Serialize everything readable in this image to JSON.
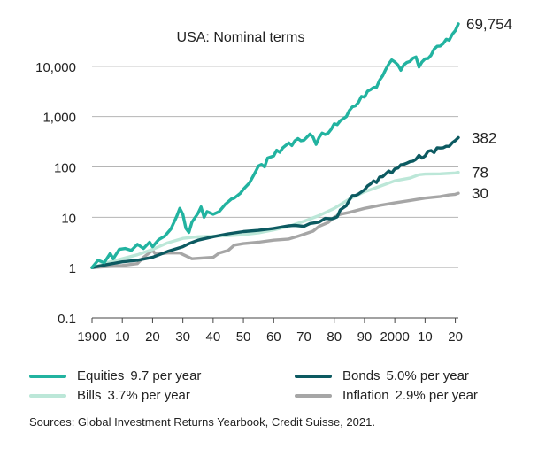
{
  "chart_data": {
    "type": "line",
    "title": "USA: Nominal terms",
    "y_scale": "log",
    "ylim": [
      0.1,
      100000
    ],
    "xlim": [
      1900,
      2021
    ],
    "y_ticks": [
      {
        "value": 0.1,
        "label": "0.1"
      },
      {
        "value": 1,
        "label": "1"
      },
      {
        "value": 10,
        "label": "10"
      },
      {
        "value": 100,
        "label": "100"
      },
      {
        "value": 1000,
        "label": "1,000"
      },
      {
        "value": 10000,
        "label": "10,000"
      }
    ],
    "x_ticks": [
      {
        "value": 1900,
        "label": "1900"
      },
      {
        "value": 1910,
        "label": "10"
      },
      {
        "value": 1920,
        "label": "20"
      },
      {
        "value": 1930,
        "label": "30"
      },
      {
        "value": 1940,
        "label": "40"
      },
      {
        "value": 1950,
        "label": "50"
      },
      {
        "value": 1960,
        "label": "60"
      },
      {
        "value": 1970,
        "label": "70"
      },
      {
        "value": 1980,
        "label": "80"
      },
      {
        "value": 1990,
        "label": "90"
      },
      {
        "value": 2000,
        "label": "2000"
      },
      {
        "value": 2010,
        "label": "10"
      },
      {
        "value": 2020,
        "label": "20"
      }
    ],
    "grid": "horizontal",
    "series": [
      {
        "name": "Equities",
        "rate": "9.7 per year",
        "color": "#22b3a0",
        "end_label": "69,754",
        "points": [
          [
            1900,
            1
          ],
          [
            1902,
            1.4
          ],
          [
            1904,
            1.25
          ],
          [
            1906,
            1.9
          ],
          [
            1907,
            1.5
          ],
          [
            1909,
            2.3
          ],
          [
            1911,
            2.4
          ],
          [
            1913,
            2.2
          ],
          [
            1915,
            2.9
          ],
          [
            1917,
            2.4
          ],
          [
            1919,
            3.2
          ],
          [
            1920,
            2.6
          ],
          [
            1922,
            3.6
          ],
          [
            1924,
            4.2
          ],
          [
            1926,
            5.8
          ],
          [
            1928,
            10.5
          ],
          [
            1929,
            15
          ],
          [
            1930,
            11.5
          ],
          [
            1931,
            6
          ],
          [
            1932,
            5
          ],
          [
            1933,
            8
          ],
          [
            1935,
            12
          ],
          [
            1936,
            16
          ],
          [
            1937,
            10
          ],
          [
            1938,
            13
          ],
          [
            1940,
            11.5
          ],
          [
            1942,
            13
          ],
          [
            1944,
            18
          ],
          [
            1946,
            23
          ],
          [
            1947,
            24
          ],
          [
            1949,
            30
          ],
          [
            1950,
            36
          ],
          [
            1952,
            48
          ],
          [
            1954,
            80
          ],
          [
            1955,
            105
          ],
          [
            1956,
            112
          ],
          [
            1957,
            100
          ],
          [
            1958,
            150
          ],
          [
            1960,
            165
          ],
          [
            1961,
            215
          ],
          [
            1962,
            195
          ],
          [
            1963,
            240
          ],
          [
            1965,
            300
          ],
          [
            1966,
            265
          ],
          [
            1967,
            330
          ],
          [
            1968,
            365
          ],
          [
            1969,
            330
          ],
          [
            1970,
            340
          ],
          [
            1972,
            450
          ],
          [
            1973,
            390
          ],
          [
            1974,
            280
          ],
          [
            1975,
            385
          ],
          [
            1976,
            470
          ],
          [
            1977,
            440
          ],
          [
            1978,
            470
          ],
          [
            1979,
            560
          ],
          [
            1980,
            720
          ],
          [
            1981,
            690
          ],
          [
            1982,
            830
          ],
          [
            1984,
            1000
          ],
          [
            1985,
            1320
          ],
          [
            1986,
            1560
          ],
          [
            1987,
            1640
          ],
          [
            1988,
            1920
          ],
          [
            1989,
            2520
          ],
          [
            1990,
            2440
          ],
          [
            1991,
            3190
          ],
          [
            1992,
            3430
          ],
          [
            1993,
            3780
          ],
          [
            1994,
            3830
          ],
          [
            1995,
            5270
          ],
          [
            1996,
            6480
          ],
          [
            1997,
            8640
          ],
          [
            1998,
            11100
          ],
          [
            1999,
            13400
          ],
          [
            2000,
            12200
          ],
          [
            2001,
            10700
          ],
          [
            2002,
            8340
          ],
          [
            2003,
            10700
          ],
          [
            2004,
            11900
          ],
          [
            2005,
            12500
          ],
          [
            2006,
            14500
          ],
          [
            2007,
            15300
          ],
          [
            2008,
            9650
          ],
          [
            2009,
            12200
          ],
          [
            2010,
            14100
          ],
          [
            2011,
            14300
          ],
          [
            2012,
            16600
          ],
          [
            2013,
            22000
          ],
          [
            2014,
            25000
          ],
          [
            2015,
            25300
          ],
          [
            2016,
            28300
          ],
          [
            2017,
            34500
          ],
          [
            2018,
            33000
          ],
          [
            2019,
            43400
          ],
          [
            2020,
            51300
          ],
          [
            2021,
            69754
          ]
        ]
      },
      {
        "name": "Bonds",
        "rate": "5.0% per year",
        "color": "#0c5a61",
        "end_label": "382",
        "points": [
          [
            1900,
            1
          ],
          [
            1905,
            1.15
          ],
          [
            1910,
            1.3
          ],
          [
            1915,
            1.4
          ],
          [
            1920,
            1.6
          ],
          [
            1925,
            2.1
          ],
          [
            1930,
            2.6
          ],
          [
            1932,
            3
          ],
          [
            1935,
            3.5
          ],
          [
            1940,
            4.1
          ],
          [
            1945,
            4.7
          ],
          [
            1950,
            5.2
          ],
          [
            1955,
            5.5
          ],
          [
            1960,
            6
          ],
          [
            1965,
            6.8
          ],
          [
            1967,
            6.9
          ],
          [
            1970,
            6.6
          ],
          [
            1972,
            7.5
          ],
          [
            1975,
            8
          ],
          [
            1977,
            9.5
          ],
          [
            1979,
            9.3
          ],
          [
            1980,
            9.6
          ],
          [
            1981,
            10.2
          ],
          [
            1982,
            14
          ],
          [
            1984,
            17
          ],
          [
            1985,
            22
          ],
          [
            1986,
            27
          ],
          [
            1987,
            27
          ],
          [
            1988,
            29
          ],
          [
            1990,
            35
          ],
          [
            1991,
            42
          ],
          [
            1992,
            46
          ],
          [
            1993,
            53
          ],
          [
            1994,
            49
          ],
          [
            1995,
            63
          ],
          [
            1996,
            64
          ],
          [
            1997,
            73
          ],
          [
            1998,
            83
          ],
          [
            1999,
            76
          ],
          [
            2000,
            91
          ],
          [
            2001,
            95
          ],
          [
            2002,
            110
          ],
          [
            2003,
            113
          ],
          [
            2004,
            119
          ],
          [
            2005,
            127
          ],
          [
            2006,
            130
          ],
          [
            2007,
            142
          ],
          [
            2008,
            170
          ],
          [
            2009,
            150
          ],
          [
            2010,
            165
          ],
          [
            2011,
            205
          ],
          [
            2012,
            212
          ],
          [
            2013,
            193
          ],
          [
            2014,
            240
          ],
          [
            2015,
            237
          ],
          [
            2016,
            240
          ],
          [
            2017,
            257
          ],
          [
            2018,
            257
          ],
          [
            2019,
            303
          ],
          [
            2020,
            334
          ],
          [
            2021,
            382
          ]
        ]
      },
      {
        "name": "Bills",
        "rate": "3.7% per year",
        "color": "#bce7d8",
        "end_label": "78",
        "points": [
          [
            1900,
            1
          ],
          [
            1905,
            1.25
          ],
          [
            1910,
            1.5
          ],
          [
            1915,
            1.8
          ],
          [
            1920,
            2.3
          ],
          [
            1925,
            3.1
          ],
          [
            1930,
            3.8
          ],
          [
            1935,
            4.1
          ],
          [
            1940,
            4.2
          ],
          [
            1945,
            4.3
          ],
          [
            1950,
            4.5
          ],
          [
            1955,
            4.9
          ],
          [
            1960,
            5.6
          ],
          [
            1965,
            6.6
          ],
          [
            1970,
            8.3
          ],
          [
            1975,
            10.8
          ],
          [
            1980,
            15
          ],
          [
            1985,
            23
          ],
          [
            1990,
            32
          ],
          [
            1995,
            41
          ],
          [
            2000,
            53
          ],
          [
            2005,
            60
          ],
          [
            2008,
            70
          ],
          [
            2010,
            72
          ],
          [
            2015,
            73
          ],
          [
            2020,
            76
          ],
          [
            2021,
            78
          ]
        ]
      },
      {
        "name": "Inflation",
        "rate": "2.9% per year",
        "color": "#a6a6a6",
        "end_label": "30",
        "points": [
          [
            1900,
            1
          ],
          [
            1905,
            1.05
          ],
          [
            1910,
            1.1
          ],
          [
            1915,
            1.2
          ],
          [
            1917,
            1.6
          ],
          [
            1920,
            2.2
          ],
          [
            1921,
            1.85
          ],
          [
            1925,
            1.95
          ],
          [
            1929,
            1.95
          ],
          [
            1933,
            1.5
          ],
          [
            1940,
            1.6
          ],
          [
            1942,
            1.95
          ],
          [
            1945,
            2.2
          ],
          [
            1947,
            2.8
          ],
          [
            1950,
            3
          ],
          [
            1955,
            3.2
          ],
          [
            1960,
            3.5
          ],
          [
            1965,
            3.7
          ],
          [
            1968,
            4.2
          ],
          [
            1970,
            4.6
          ],
          [
            1973,
            5.3
          ],
          [
            1975,
            6.6
          ],
          [
            1978,
            7.9
          ],
          [
            1980,
            10
          ],
          [
            1982,
            11.5
          ],
          [
            1985,
            12.5
          ],
          [
            1990,
            15
          ],
          [
            1995,
            17.2
          ],
          [
            2000,
            19.3
          ],
          [
            2005,
            21.5
          ],
          [
            2010,
            24
          ],
          [
            2015,
            25.8
          ],
          [
            2018,
            27.8
          ],
          [
            2020,
            28.6
          ],
          [
            2021,
            30
          ]
        ]
      }
    ]
  },
  "legend": [
    {
      "name": "Equities",
      "rate": "9.7 per year",
      "color": "#22b3a0"
    },
    {
      "name": "Bonds",
      "rate": "5.0% per year",
      "color": "#0c5a61"
    },
    {
      "name": "Bills",
      "rate": "3.7% per year",
      "color": "#bce7d8"
    },
    {
      "name": "Inflation",
      "rate": "2.9% per year",
      "color": "#a6a6a6"
    }
  ],
  "source": "Sources: Global Investment Returns Yearbook, Credit Suisse, 2021."
}
